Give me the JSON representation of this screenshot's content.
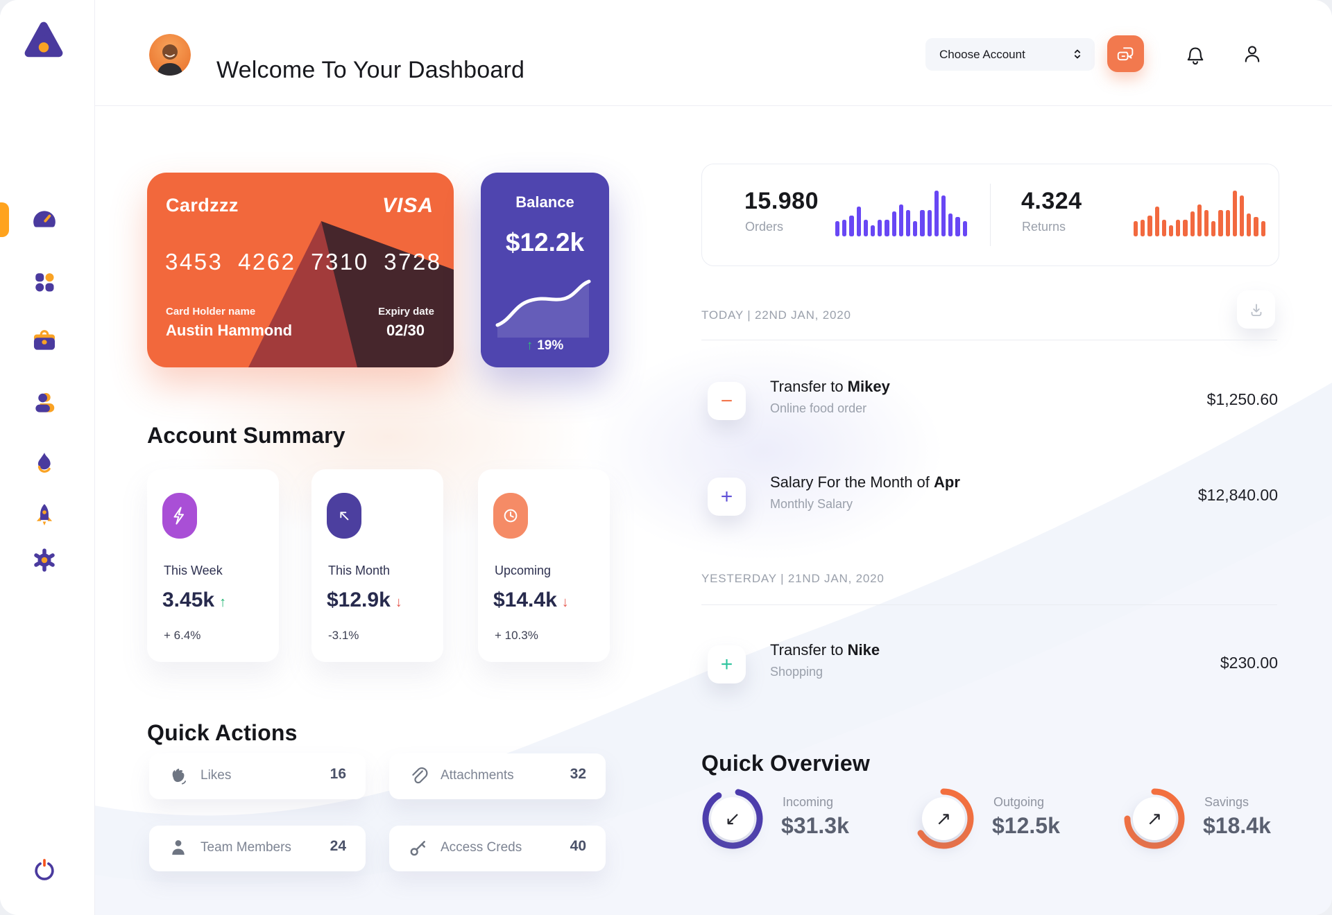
{
  "colors": {
    "brand_purple": "#4A3A9E",
    "brand_orange": "#F9A224",
    "credit_card_bg": "#F2683C",
    "balance_card_bg": "#4F45AF",
    "green_up": "#22B573",
    "red_down": "#E4584F"
  },
  "sidebar": {
    "logo_icon": "triangle-logo",
    "items": [
      {
        "icon": "speedometer-icon",
        "active": true
      },
      {
        "icon": "grid-icon",
        "active": false
      },
      {
        "icon": "briefcase-icon",
        "active": false
      },
      {
        "icon": "user-icon",
        "active": false
      },
      {
        "icon": "flame-icon",
        "active": false
      },
      {
        "icon": "rocket-icon",
        "active": false
      },
      {
        "icon": "gear-icon",
        "active": false
      }
    ],
    "logout_icon": "power-icon"
  },
  "header": {
    "title": "Welcome To Your Dashboard",
    "account_select_label": "Choose Account",
    "icons": [
      "chat-bubbles-icon",
      "bell-icon",
      "user-icon"
    ]
  },
  "credit_card": {
    "name": "Cardzzz",
    "brand": "VISA",
    "number": "3453 4262 7310 3728",
    "holder_label": "Card Holder name",
    "holder_name": "Austin Hammond",
    "expiry_label": "Expiry date",
    "expiry": "02/30"
  },
  "balance": {
    "label": "Balance",
    "amount": "$12.2k",
    "trend_arrow": "↑",
    "change": "19%"
  },
  "stats": {
    "orders": {
      "value": "15.980",
      "label": "Orders",
      "bar_color": "#6847F4",
      "bars": [
        34,
        36,
        45,
        65,
        36,
        24,
        37,
        36,
        54,
        69,
        58,
        34,
        57,
        57,
        100,
        89,
        50,
        43,
        34
      ]
    },
    "returns": {
      "value": "4.324",
      "label": "Returns",
      "bar_color": "#F2693F",
      "bars": [
        34,
        36,
        45,
        65,
        36,
        24,
        37,
        36,
        54,
        69,
        58,
        34,
        57,
        57,
        100,
        89,
        50,
        43,
        34
      ]
    }
  },
  "account_summary": {
    "title": "Account Summary",
    "cards": [
      {
        "label": "This Week",
        "value": "3.45k",
        "trend_arrow": "↑",
        "trend_color": "#22B573",
        "percent": "+ 6.4%",
        "icon": "lightning-icon",
        "icon_bg": "#A94FD6"
      },
      {
        "label": "This Month",
        "value": "$12.9k",
        "trend_arrow": "↓",
        "trend_color": "#E4584F",
        "percent": "-3.1%",
        "icon": "arrow-up-left-icon",
        "icon_bg": "#4C3F9F"
      },
      {
        "label": "Upcoming",
        "value": "$14.4k",
        "trend_arrow": "↓",
        "trend_color": "#E4584F",
        "percent": "+ 10.3%",
        "icon": "clock-icon",
        "icon_bg": "#F58B66"
      }
    ]
  },
  "quick_actions": {
    "title": "Quick Actions",
    "items": [
      {
        "label": "Likes",
        "count": "16",
        "icon": "clap-icon"
      },
      {
        "label": "Attachments",
        "count": "32",
        "icon": "paperclip-icon"
      },
      {
        "label": "Team Members",
        "count": "24",
        "icon": "person-icon"
      },
      {
        "label": "Access Creds",
        "count": "40",
        "icon": "key-icon"
      }
    ]
  },
  "transactions": {
    "download_icon": "download-icon",
    "groups": [
      {
        "date_label": "TODAY | 22ND JAN, 2020",
        "items": [
          {
            "sign_glyph": "−",
            "sign_color": "#F2764D",
            "title_prefix": "Transfer to ",
            "title_bold": "Mikey",
            "subtitle": "Online food order",
            "amount": "$1,250.60"
          },
          {
            "sign_glyph": "+",
            "sign_color": "#5F50D7",
            "title_prefix": "Salary For the Month of ",
            "title_bold": "Apr",
            "subtitle": "Monthly Salary",
            "amount": "$12,840.00"
          }
        ]
      },
      {
        "date_label": "YESTERDAY | 21ND JAN, 2020",
        "items": [
          {
            "sign_glyph": "+",
            "sign_color": "#2FC49E",
            "title_prefix": "Transfer to ",
            "title_bold": "Nike",
            "subtitle": "Shopping",
            "amount": "$230.00"
          }
        ]
      }
    ]
  },
  "quick_overview": {
    "title": "Quick Overview",
    "items": [
      {
        "label": "Incoming",
        "amount": "$31.3k",
        "ring_color": "#4C3CAD",
        "ring_percent": 88,
        "arrow_glyph": "↙",
        "arrow_icon": "arrow-down-left-icon"
      },
      {
        "label": "Outgoing",
        "amount": "$12.5k",
        "ring_color": "#F4703F",
        "ring_percent": 66,
        "arrow_glyph": "↗",
        "arrow_icon": "arrow-up-right-icon"
      },
      {
        "label": "Savings",
        "amount": "$18.4k",
        "ring_color": "#F4703F",
        "ring_percent": 75,
        "arrow_glyph": "↗",
        "arrow_icon": "arrow-up-right-icon"
      }
    ]
  }
}
